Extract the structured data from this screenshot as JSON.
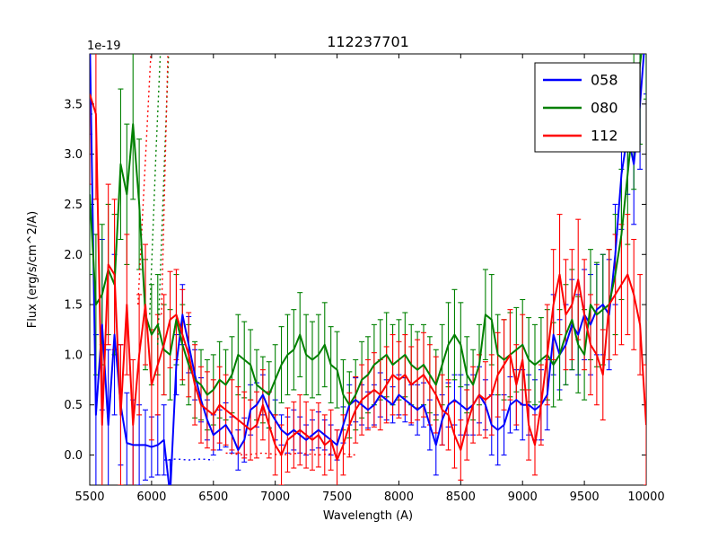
{
  "chart_data": {
    "type": "line",
    "title": "112237701",
    "xlabel": "Wavelength (A)",
    "ylabel": "Flux (erg/s/cm^2/A)",
    "y_offset_label": "1e-19",
    "xlim": [
      5500,
      10000
    ],
    "ylim": [
      -0.3,
      4.0
    ],
    "grid": false,
    "legend_position": "upper right",
    "xticks": [
      5500,
      6000,
      6500,
      7000,
      7500,
      8000,
      8500,
      9000,
      9500,
      10000
    ],
    "xtick_labels": [
      "5500",
      "6000",
      "6500",
      "7000",
      "7500",
      "8000",
      "8500",
      "9000",
      "9500",
      "10000"
    ],
    "yticks": [
      0.0,
      0.5,
      1.0,
      1.5,
      2.0,
      2.5,
      3.0,
      3.5
    ],
    "ytick_labels": [
      "0.0",
      "0.5",
      "1.0",
      "1.5",
      "2.0",
      "2.5",
      "3.0",
      "3.5"
    ],
    "x": {
      "start": 5500,
      "step": 50,
      "count": 91
    },
    "series": [
      {
        "name": "058",
        "color": "#0000ff",
        "values": [
          4.2,
          0.4,
          1.3,
          0.3,
          1.2,
          0.5,
          0.12,
          0.1,
          0.1,
          0.1,
          0.08,
          0.1,
          0.15,
          -0.4,
          0.9,
          1.4,
          1.1,
          0.8,
          0.55,
          0.35,
          0.2,
          0.25,
          0.3,
          0.2,
          0.05,
          0.15,
          0.45,
          0.5,
          0.6,
          0.45,
          0.35,
          0.25,
          0.2,
          0.25,
          0.2,
          0.15,
          0.2,
          0.25,
          0.2,
          0.15,
          0.1,
          0.3,
          0.5,
          0.55,
          0.5,
          0.45,
          0.5,
          0.6,
          0.55,
          0.5,
          0.6,
          0.55,
          0.5,
          0.45,
          0.5,
          0.3,
          0.1,
          0.35,
          0.5,
          0.55,
          0.5,
          0.45,
          0.5,
          0.6,
          0.5,
          0.3,
          0.25,
          0.3,
          0.5,
          0.55,
          0.5,
          0.5,
          0.45,
          0.5,
          0.6,
          1.2,
          1.0,
          1.1,
          1.3,
          1.2,
          1.4,
          1.3,
          1.45,
          1.5,
          1.4,
          2.0,
          2.8,
          3.2,
          2.9,
          3.5,
          4.3
        ],
        "errors": [
          1.0,
          0.8,
          0.85,
          0.75,
          0.8,
          0.6,
          0.5,
          0.45,
          0.4,
          0.35,
          0.3,
          0.3,
          0.35,
          0.35,
          0.3,
          0.3,
          0.28,
          0.25,
          0.22,
          0.2,
          0.2,
          0.2,
          0.22,
          0.18,
          0.2,
          0.22,
          0.25,
          0.22,
          0.2,
          0.18,
          0.2,
          0.15,
          0.18,
          0.2,
          0.18,
          0.15,
          0.15,
          0.18,
          0.15,
          0.15,
          0.15,
          0.18,
          0.2,
          0.22,
          0.2,
          0.18,
          0.2,
          0.22,
          0.2,
          0.18,
          0.2,
          0.22,
          0.2,
          0.25,
          0.22,
          0.25,
          0.3,
          0.25,
          0.22,
          0.25,
          0.3,
          0.25,
          0.3,
          0.28,
          0.25,
          0.3,
          0.35,
          0.3,
          0.28,
          0.3,
          0.35,
          0.3,
          0.3,
          0.35,
          0.35,
          0.4,
          0.35,
          0.4,
          0.45,
          0.4,
          0.45,
          0.5,
          0.45,
          0.5,
          0.55,
          0.5,
          0.55,
          0.6,
          0.6,
          0.65,
          0.7
        ]
      },
      {
        "name": "080",
        "color": "#008000",
        "values": [
          2.6,
          1.5,
          1.6,
          1.85,
          1.7,
          2.9,
          2.6,
          3.3,
          2.5,
          1.4,
          1.2,
          1.3,
          1.05,
          1.0,
          1.35,
          1.1,
          0.9,
          0.75,
          0.7,
          0.6,
          0.65,
          0.75,
          0.7,
          0.8,
          1.0,
          0.95,
          0.9,
          0.7,
          0.65,
          0.6,
          0.75,
          0.9,
          1.0,
          1.05,
          1.2,
          1.0,
          0.95,
          1.0,
          1.1,
          0.9,
          0.85,
          0.6,
          0.5,
          0.6,
          0.75,
          0.8,
          0.9,
          0.95,
          1.0,
          0.9,
          0.95,
          1.0,
          0.9,
          0.85,
          0.9,
          0.8,
          0.7,
          0.9,
          1.1,
          1.2,
          1.1,
          0.8,
          0.7,
          0.9,
          1.4,
          1.35,
          1.0,
          0.95,
          1.0,
          1.05,
          1.1,
          0.95,
          0.9,
          0.95,
          1.0,
          0.9,
          1.0,
          1.2,
          1.35,
          1.1,
          1.0,
          1.5,
          1.4,
          1.45,
          1.5,
          1.8,
          2.2,
          2.8,
          3.4,
          3.9,
          4.4
        ],
        "errors": [
          0.8,
          0.7,
          0.7,
          0.65,
          0.7,
          0.75,
          0.7,
          0.75,
          0.65,
          0.55,
          0.5,
          0.5,
          0.45,
          0.45,
          0.45,
          0.4,
          0.4,
          0.38,
          0.35,
          0.35,
          0.35,
          0.38,
          0.35,
          0.38,
          0.4,
          0.38,
          0.35,
          0.35,
          0.33,
          0.33,
          0.35,
          0.38,
          0.4,
          0.4,
          0.42,
          0.4,
          0.38,
          0.4,
          0.42,
          0.38,
          0.38,
          0.35,
          0.33,
          0.35,
          0.38,
          0.38,
          0.4,
          0.4,
          0.42,
          0.4,
          0.4,
          0.42,
          0.4,
          0.38,
          0.4,
          0.38,
          0.35,
          0.4,
          0.42,
          0.45,
          0.42,
          0.38,
          0.35,
          0.4,
          0.45,
          0.45,
          0.4,
          0.4,
          0.42,
          0.42,
          0.45,
          0.42,
          0.4,
          0.42,
          0.45,
          0.42,
          0.45,
          0.5,
          0.5,
          0.48,
          0.45,
          0.55,
          0.52,
          0.55,
          0.55,
          0.6,
          0.65,
          0.7,
          0.75,
          0.8,
          0.85
        ]
      },
      {
        "name": "112",
        "color": "#ff0000",
        "values": [
          3.6,
          3.4,
          0.3,
          1.9,
          1.8,
          0.4,
          1.5,
          0.3,
          1.0,
          1.5,
          0.7,
          0.9,
          1.1,
          1.35,
          1.4,
          1.2,
          1.0,
          0.7,
          0.5,
          0.45,
          0.4,
          0.5,
          0.45,
          0.4,
          0.35,
          0.3,
          0.25,
          0.3,
          0.5,
          0.3,
          0.1,
          0.0,
          0.15,
          0.2,
          0.25,
          0.2,
          0.15,
          0.2,
          0.1,
          0.15,
          -0.05,
          0.1,
          0.3,
          0.45,
          0.55,
          0.6,
          0.65,
          0.6,
          0.7,
          0.8,
          0.75,
          0.8,
          0.7,
          0.75,
          0.8,
          0.7,
          0.6,
          0.45,
          0.4,
          0.2,
          0.05,
          0.3,
          0.5,
          0.6,
          0.55,
          0.6,
          0.8,
          0.9,
          1.0,
          0.7,
          0.95,
          0.3,
          0.1,
          0.5,
          1.0,
          1.5,
          1.8,
          1.4,
          1.5,
          1.75,
          1.4,
          1.1,
          1.0,
          0.8,
          1.5,
          1.6,
          1.7,
          1.8,
          1.6,
          1.3,
          0.3
        ],
        "errors": [
          0.9,
          0.85,
          0.8,
          0.8,
          0.75,
          0.7,
          0.7,
          0.65,
          0.6,
          0.6,
          0.55,
          0.5,
          0.5,
          0.48,
          0.45,
          0.45,
          0.42,
          0.4,
          0.38,
          0.38,
          0.35,
          0.38,
          0.35,
          0.35,
          0.33,
          0.33,
          0.3,
          0.33,
          0.35,
          0.33,
          0.3,
          0.3,
          0.32,
          0.33,
          0.35,
          0.33,
          0.3,
          0.32,
          0.3,
          0.3,
          0.3,
          0.3,
          0.32,
          0.33,
          0.35,
          0.35,
          0.37,
          0.35,
          0.38,
          0.4,
          0.38,
          0.4,
          0.38,
          0.4,
          0.42,
          0.4,
          0.38,
          0.35,
          0.35,
          0.33,
          0.3,
          0.35,
          0.38,
          0.4,
          0.38,
          0.4,
          0.42,
          0.45,
          0.45,
          0.4,
          0.45,
          0.35,
          0.3,
          0.4,
          0.5,
          0.55,
          0.6,
          0.55,
          0.55,
          0.6,
          0.55,
          0.5,
          0.5,
          0.45,
          0.55,
          0.6,
          0.6,
          0.6,
          0.55,
          0.5,
          0.6
        ]
      }
    ],
    "dotted_segments": [
      {
        "color": "#ff0000",
        "x": [
          5890,
          5915,
          5940,
          5965,
          5990,
          6010
        ],
        "y": [
          1.5,
          2.1,
          2.7,
          3.3,
          3.9,
          4.4
        ]
      },
      {
        "color": "#008000",
        "x": [
          5985,
          6010,
          6035,
          6060,
          6085
        ],
        "y": [
          1.4,
          2.2,
          3.0,
          3.7,
          4.4
        ]
      },
      {
        "color": "#008000",
        "x": [
          6050,
          6075,
          6100,
          6125,
          6150
        ],
        "y": [
          1.1,
          1.95,
          2.8,
          3.6,
          4.4
        ]
      },
      {
        "color": "#ff0000",
        "x": [
          6080,
          6100,
          6120,
          6140
        ],
        "y": [
          1.4,
          2.4,
          3.4,
          4.4
        ]
      },
      {
        "color": "#ff0000",
        "x": [
          6600,
          6750,
          6900,
          7050,
          7200,
          7350,
          7500,
          7650
        ],
        "y": [
          0.02,
          0.0,
          0.02,
          0.0,
          0.02,
          0.0,
          0.02,
          0.0
        ]
      },
      {
        "color": "#0000ff",
        "x": [
          6100,
          6200,
          6300,
          6400,
          6500
        ],
        "y": [
          -0.05,
          -0.04,
          -0.05,
          -0.04,
          -0.05
        ]
      }
    ],
    "legend": {
      "entries": [
        {
          "label": "058",
          "color": "#0000ff"
        },
        {
          "label": "080",
          "color": "#008000"
        },
        {
          "label": "112",
          "color": "#ff0000"
        }
      ]
    }
  }
}
